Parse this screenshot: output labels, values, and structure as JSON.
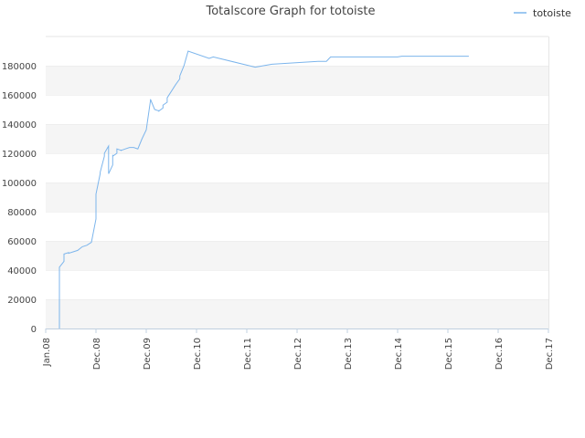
{
  "chart_data": {
    "type": "line",
    "title": "Totalscore Graph for totoiste",
    "xlabel": "",
    "ylabel": "",
    "x_ticks": [
      "Jan.08",
      "Dec.08",
      "Dec.09",
      "Dec.10",
      "Dec.11",
      "Dec.12",
      "Dec.13",
      "Dec.14",
      "Dec.15",
      "Dec.16",
      "Dec.17"
    ],
    "y_ticks": [
      0,
      20000,
      40000,
      60000,
      80000,
      100000,
      120000,
      140000,
      160000,
      180000
    ],
    "ylim": [
      0,
      200000
    ],
    "grid": "horizontal alternating bands",
    "legend_position": "top-right",
    "series": [
      {
        "name": "totoiste",
        "color": "#7cb5ec",
        "x": [
          "2008-04",
          "2008-04",
          "2008-04",
          "2008-04",
          "2008-05",
          "2008-05",
          "2008-05",
          "2008-06",
          "2008-06",
          "2008-07",
          "2008-08",
          "2008-09",
          "2008-10",
          "2008-11",
          "2008-12",
          "2008-12",
          "2008-12",
          "2009-01",
          "2009-01",
          "2009-02",
          "2009-02",
          "2009-03",
          "2009-03",
          "2009-04",
          "2009-04",
          "2009-04",
          "2009-05",
          "2009-05",
          "2009-05",
          "2009-06",
          "2009-06",
          "2009-06",
          "2009-07",
          "2009-08",
          "2009-09",
          "2009-10",
          "2009-11",
          "2009-12",
          "2010-01",
          "2010-01",
          "2010-02",
          "2010-03",
          "2010-03",
          "2010-03",
          "2010-04",
          "2010-04",
          "2010-05",
          "2010-05",
          "2010-07",
          "2010-08",
          "2010-08",
          "2010-09",
          "2010-10",
          "2011-03",
          "2011-04",
          "2012-02",
          "2012-04",
          "2012-06",
          "2013-05",
          "2013-07",
          "2013-08",
          "2014-12",
          "2015-01",
          "2016-05"
        ],
        "values": [
          0,
          25000,
          38000,
          42000,
          46000,
          49000,
          51000,
          52000,
          51500,
          52500,
          53500,
          56000,
          57000,
          59000,
          75000,
          90000,
          92000,
          106000,
          107000,
          118000,
          120000,
          125000,
          106000,
          112000,
          119000,
          118000,
          120000,
          121000,
          123000,
          122000,
          122500,
          122000,
          123000,
          124000,
          124000,
          123000,
          130000,
          136000,
          156000,
          157000,
          150000,
          149000,
          149500,
          149000,
          151000,
          153000,
          155000,
          158000,
          167000,
          171000,
          173000,
          180000,
          190000,
          185000,
          186000,
          179000,
          180000,
          181000,
          183000,
          183000,
          186000,
          186000,
          186500,
          186500
        ]
      }
    ]
  }
}
